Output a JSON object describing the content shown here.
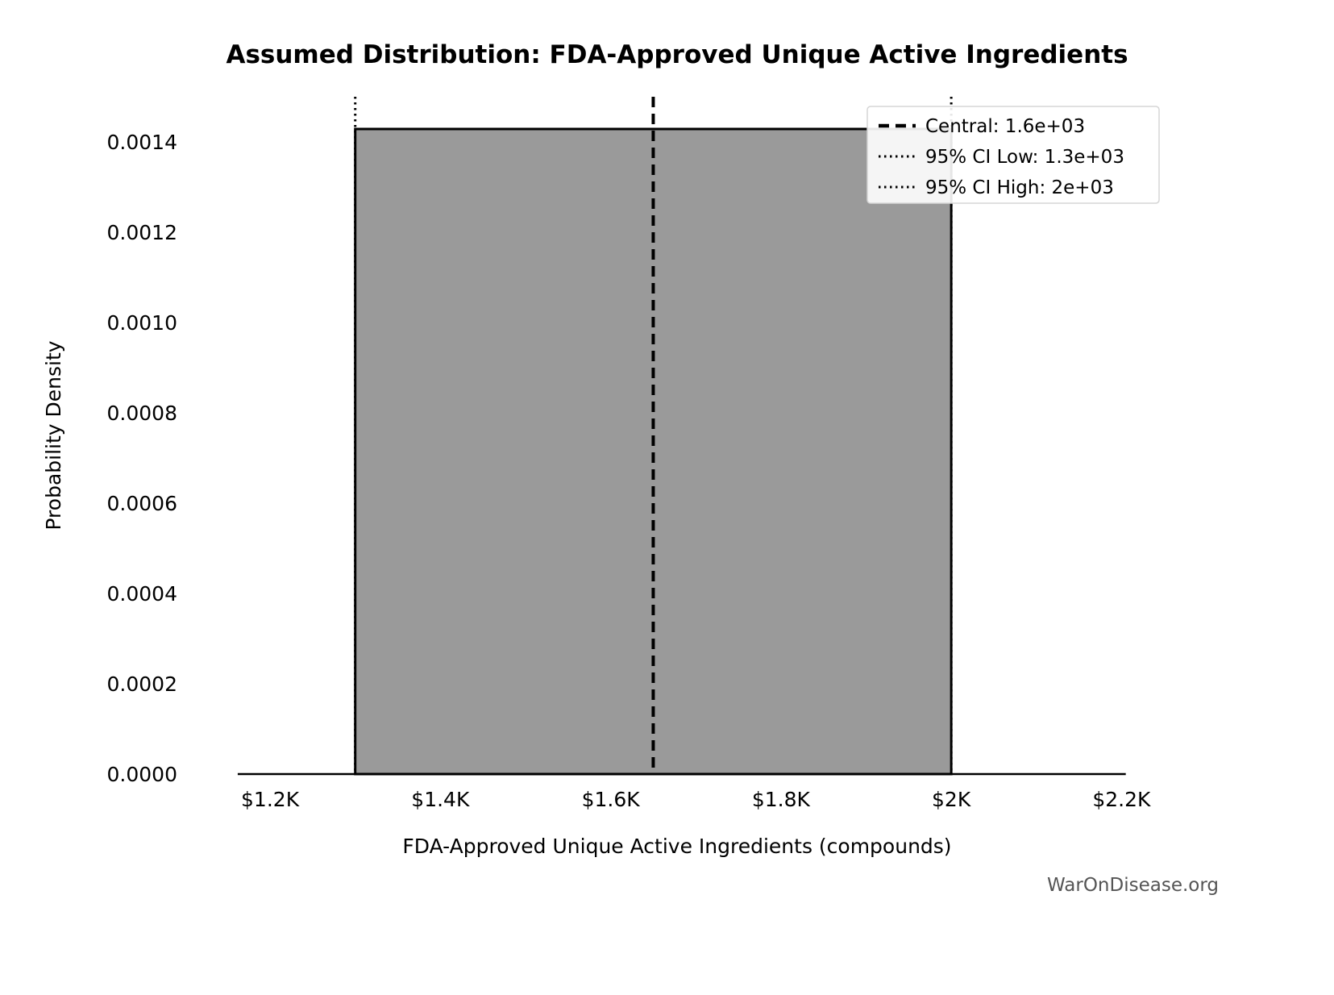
{
  "chart_data": {
    "type": "area",
    "subtype": "uniform-distribution-pdf",
    "title": "Assumed Distribution: FDA-Approved Unique Active Ingredients",
    "xlabel": "FDA-Approved Unique Active Ingredients (compounds)",
    "ylabel": "Probability Density",
    "low": 1300,
    "high": 2000,
    "central": 1650,
    "density": 0.0014286,
    "xlim": [
      1110,
      2246
    ],
    "ylim": [
      0,
      0.0015
    ],
    "x_ticks": [
      1200,
      1400,
      1600,
      1800,
      2000,
      2200
    ],
    "x_tick_labels": [
      "$1.2K",
      "$1.4K",
      "$1.6K",
      "$1.8K",
      "$2K",
      "$2.2K"
    ],
    "y_ticks": [
      0.0,
      0.0002,
      0.0004,
      0.0006,
      0.0008,
      0.001,
      0.0012,
      0.0014
    ],
    "y_tick_labels": [
      "0.0000",
      "0.0002",
      "0.0004",
      "0.0006",
      "0.0008",
      "0.0010",
      "0.0012",
      "0.0014"
    ],
    "baseline_x": [
      1162,
      2205
    ],
    "fill_color": "#9a9a9a",
    "line_color": "#000000",
    "legend": [
      {
        "label": "Central: 1.6e+03",
        "style": "dashed"
      },
      {
        "label": "95% CI Low: 1.3e+03",
        "style": "dotted"
      },
      {
        "label": "95% CI High: 2e+03",
        "style": "dotted"
      }
    ],
    "legend_position": "upper right",
    "grid": false
  },
  "watermark": "WarOnDisease.org"
}
